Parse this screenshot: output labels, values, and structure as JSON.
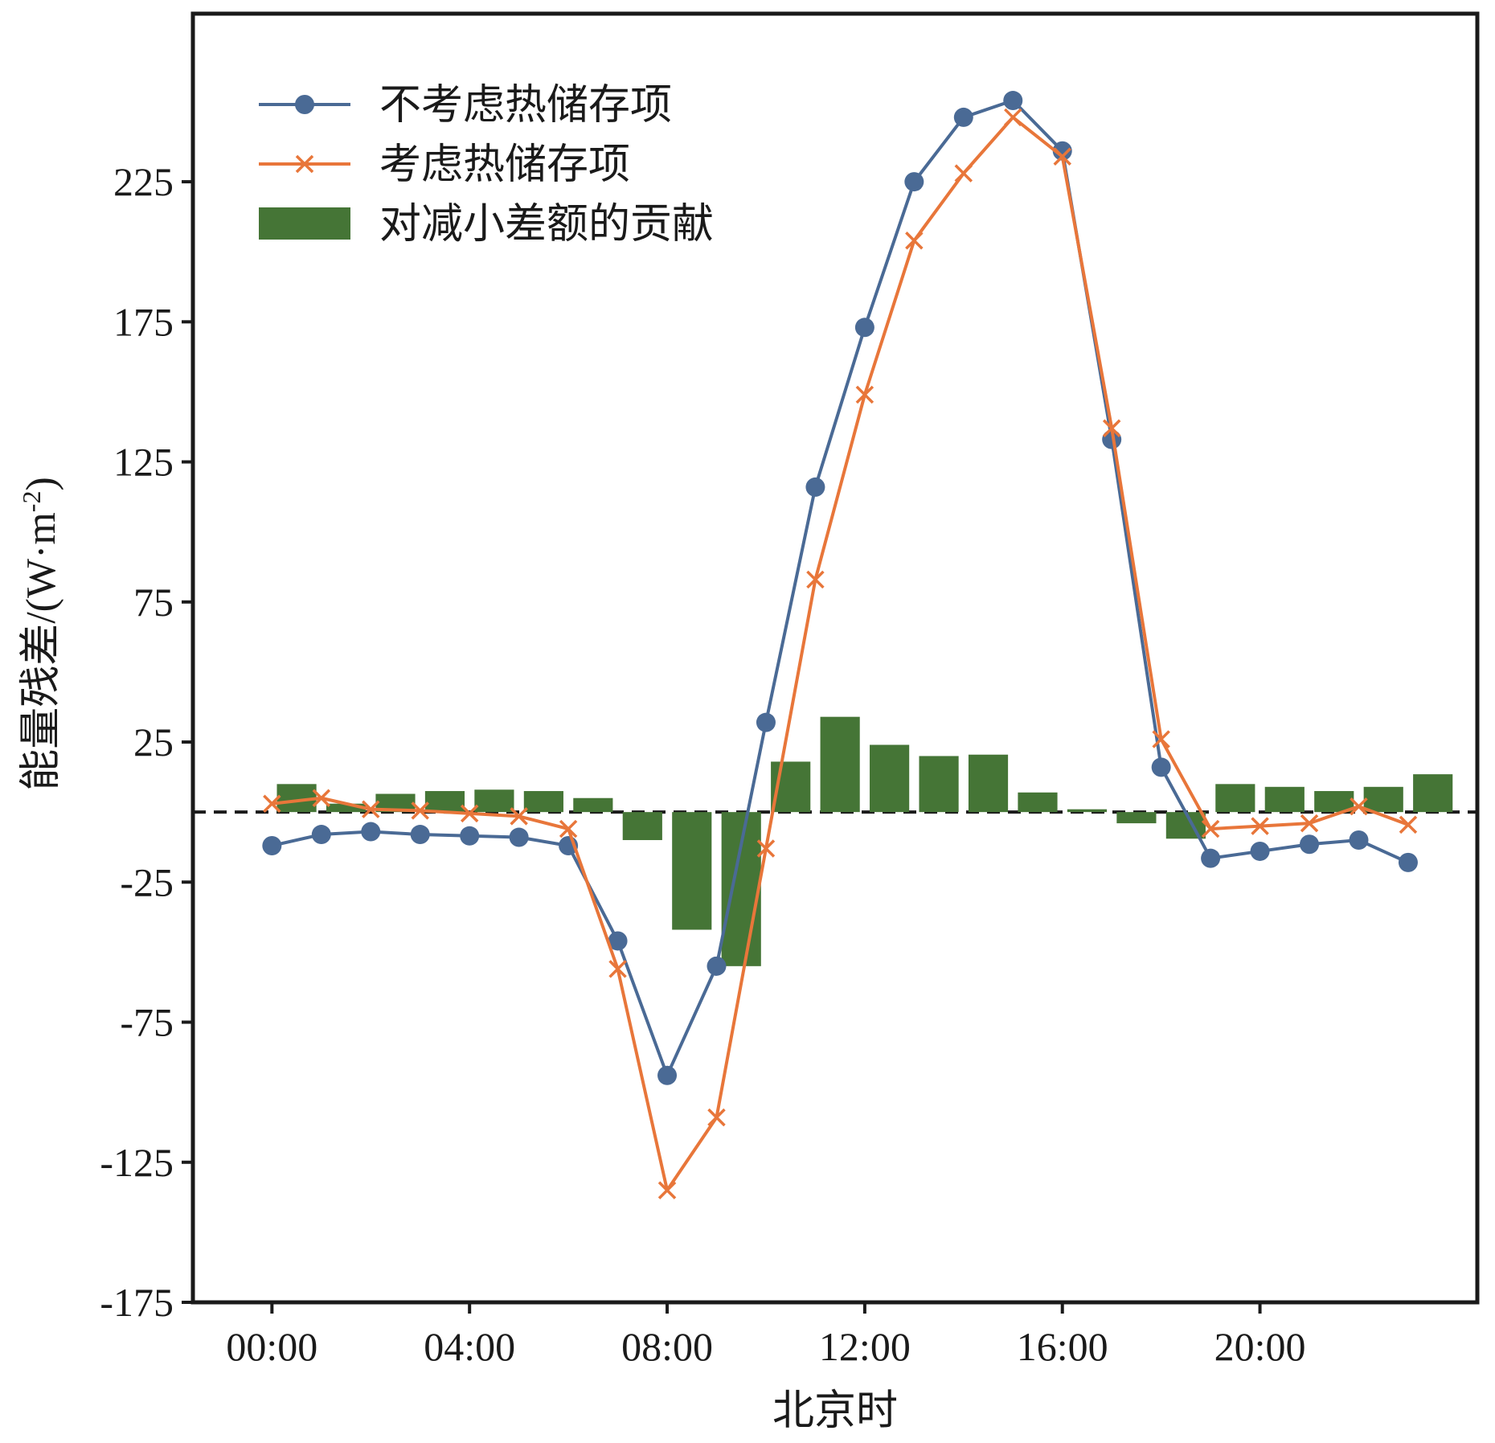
{
  "chart_data": {
    "type": "line",
    "title": "",
    "xlabel": "北京时",
    "ylabel": "能量残差/(W·m",
    "ylabel_sup": "-2",
    "ylabel_close": ")",
    "xlim": [
      -1.6,
      24.4
    ],
    "ylim": [
      -175,
      285
    ],
    "x_ticks": [
      0,
      4,
      8,
      12,
      16,
      20
    ],
    "x_tick_labels": [
      "00:00",
      "04:00",
      "08:00",
      "12:00",
      "16:00",
      "20:00"
    ],
    "y_ticks": [
      -175,
      -125,
      -75,
      -25,
      25,
      75,
      125,
      175,
      225
    ],
    "y_tick_labels": [
      "-175",
      "-125",
      "-75",
      "-25",
      "25",
      "75",
      "125",
      "175",
      "225"
    ],
    "reference_line": {
      "y": 0,
      "style": "dashed"
    },
    "legend": {
      "position": "top-left"
    },
    "x": [
      0,
      1,
      2,
      3,
      4,
      5,
      6,
      7,
      8,
      9,
      10,
      11,
      12,
      13,
      14,
      15,
      16,
      17,
      18,
      19,
      20,
      21,
      22,
      23
    ],
    "series": [
      {
        "name": "不考虑热储存项",
        "kind": "line",
        "marker": "circle",
        "color": "#4a6a95",
        "values": [
          -12,
          -8,
          -7,
          -8,
          -8.5,
          -9,
          -12,
          -46,
          -94,
          -55,
          32,
          116,
          173,
          225,
          248,
          254,
          236,
          133,
          16,
          -16.5,
          -14,
          -11.5,
          -10,
          -18
        ]
      },
      {
        "name": "考虑热储存项",
        "kind": "line",
        "marker": "x",
        "color": "#e8763a",
        "values": [
          3,
          5,
          1,
          0.5,
          -0.5,
          -1.5,
          -6,
          -56,
          -135,
          -109,
          -13,
          83,
          149,
          204,
          228,
          248,
          234,
          137,
          26,
          -6,
          -5,
          -4,
          2,
          -4.5
        ]
      },
      {
        "name": "对减小差额的贡献",
        "kind": "bar",
        "color": "#457536",
        "values": [
          10,
          3,
          6.5,
          7.5,
          8,
          7.5,
          5,
          -10,
          -42,
          -55,
          18,
          34,
          24,
          20,
          20.5,
          7,
          1,
          -4,
          -9.5,
          10,
          9,
          7.5,
          9,
          13.5
        ]
      }
    ]
  }
}
